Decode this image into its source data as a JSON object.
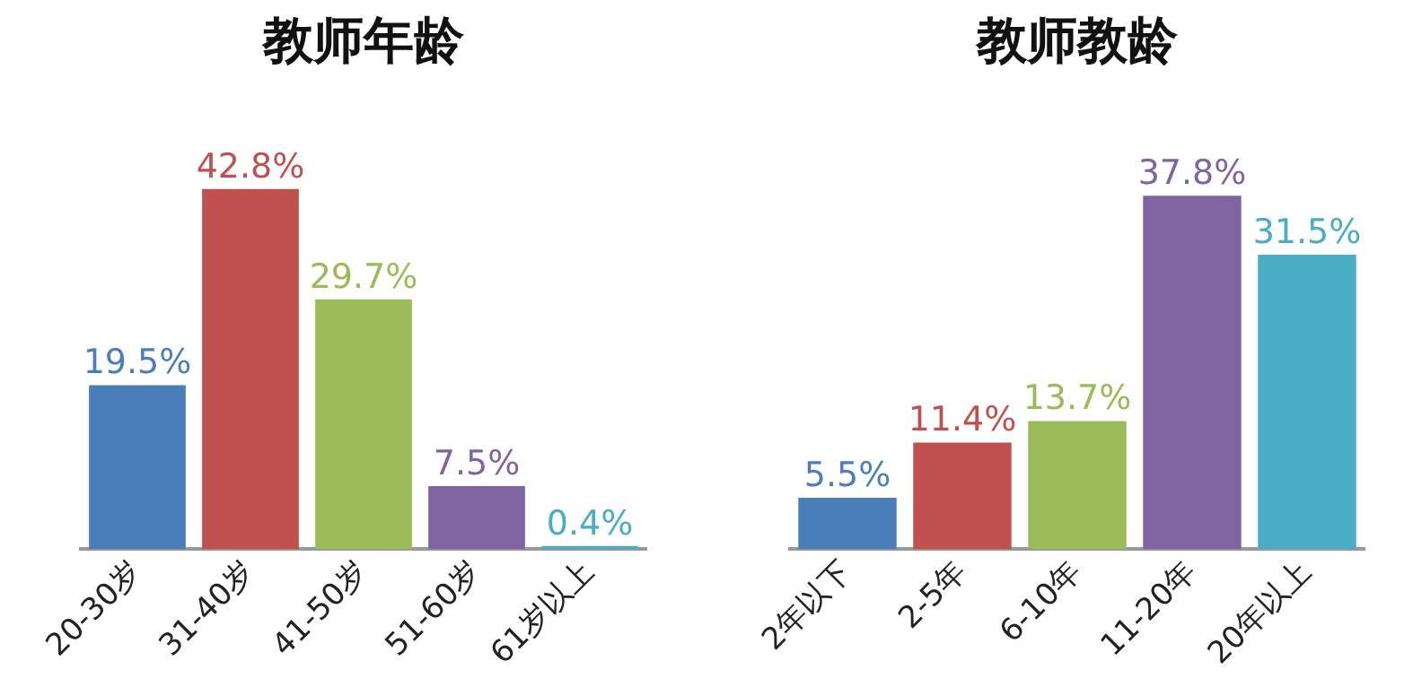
{
  "chart_data": [
    {
      "type": "bar",
      "title": "教师年龄",
      "categories": [
        "20-30岁",
        "31-40岁",
        "41-50岁",
        "51-60岁",
        "61岁以上"
      ],
      "values": [
        19.5,
        42.8,
        29.7,
        7.5,
        0.4
      ],
      "colors": [
        "#4a7ebb",
        "#c0504d",
        "#9bbb59",
        "#8064a2",
        "#4bacc6"
      ],
      "value_labels": [
        "19.5%",
        "42.8%",
        "29.7%",
        "7.5%",
        "0.4%"
      ],
      "grid": false,
      "legend": false
    },
    {
      "type": "bar",
      "title": "教师教龄",
      "categories": [
        "2年以下",
        "2-5年",
        "6-10年",
        "11-20年",
        "20年以上"
      ],
      "values": [
        5.5,
        11.4,
        13.7,
        37.8,
        31.5
      ],
      "colors": [
        "#4a7ebb",
        "#c0504d",
        "#9bbb59",
        "#8064a2",
        "#4bacc6"
      ],
      "value_labels": [
        "5.5%",
        "11.4%",
        "13.7%",
        "37.8%",
        "31.5%"
      ],
      "grid": false,
      "legend": false
    }
  ]
}
